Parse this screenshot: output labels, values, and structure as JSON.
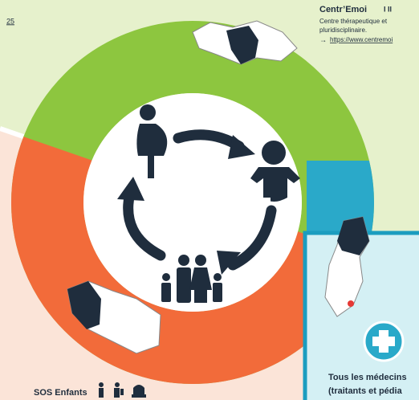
{
  "header": {
    "page_ref": "25"
  },
  "centre": {
    "title": "Centr’Emoi",
    "levels": "I   II",
    "lines": [
      "Centre thérapeutique et",
      "pluridisciplinaire."
    ],
    "link": "https://www.centremoi"
  },
  "sos": {
    "title": "SOS Enfants"
  },
  "doctors": {
    "lines": [
      "Tous les médecins",
      "(traitants et pédia"
    ]
  }
}
